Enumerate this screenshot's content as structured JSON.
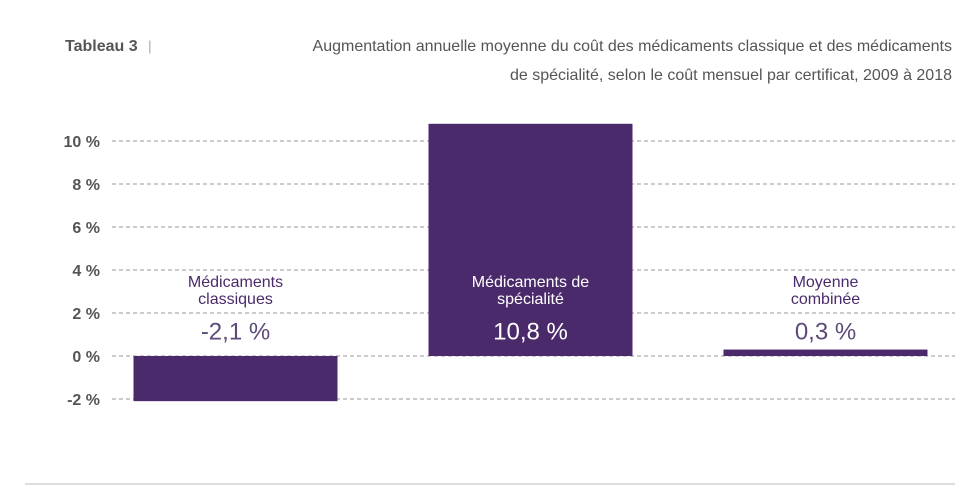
{
  "chart_data": {
    "type": "bar",
    "title_label": "Tableau 3",
    "title_separator": "|",
    "title": [
      "Augmentation annuelle moyenne du coût des médicaments classique et des médicaments",
      "de spécialité, selon le coût mensuel par certificat, 2009 à 2018"
    ],
    "categories": [
      "Médicaments classiques",
      "Médicaments de spécialité",
      "Moyenne combinée"
    ],
    "values": [
      -2.1,
      10.8,
      0.3
    ],
    "value_labels": [
      "-2,1 %",
      "10,8 %",
      "0,3 %"
    ],
    "color": "#4b2a6b",
    "ylim": [
      -2,
      10
    ],
    "yticks": [
      {
        "value": -2,
        "label": "-2 %"
      },
      {
        "value": 0,
        "label": "0 %"
      },
      {
        "value": 2,
        "label": "2 %"
      },
      {
        "value": 4,
        "label": "4 %"
      },
      {
        "value": 6,
        "label": "6 %"
      },
      {
        "value": 8,
        "label": "8 %"
      },
      {
        "value": 10,
        "label": "10 %"
      }
    ],
    "grid": true
  }
}
